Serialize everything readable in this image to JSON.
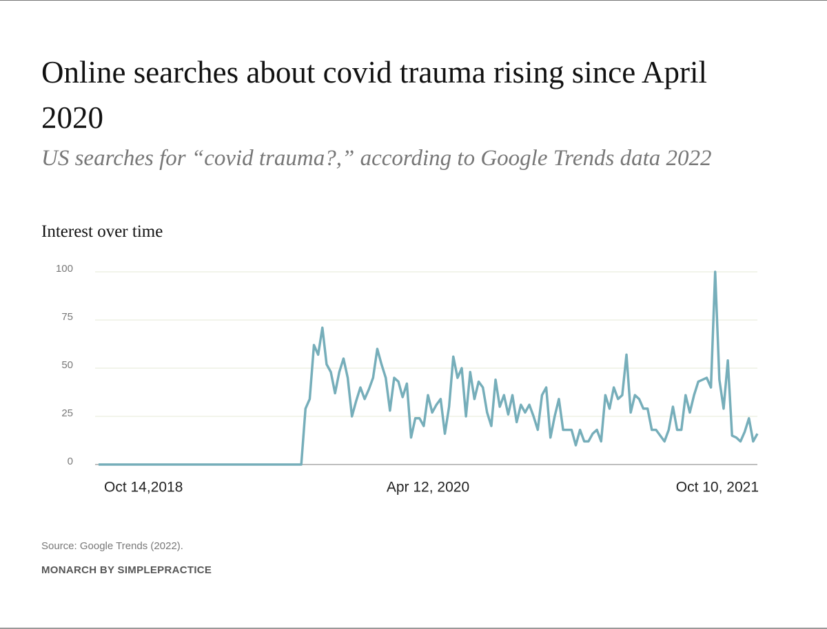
{
  "chart_data": {
    "type": "line",
    "title": "Online searches about covid trauma rising since April 2020",
    "subtitle": "US searches for “covid trauma?,” according to Google Trends data 2022",
    "y_label": "Interest over time",
    "source": "Source: Google Trends (2022).",
    "brand": "MONARCH BY SIMPLEPRACTICE",
    "categories": [
      "Oct 14,2018",
      null,
      null,
      null,
      null,
      null,
      null,
      null,
      null,
      null,
      null,
      null,
      null,
      null,
      null,
      null,
      null,
      null,
      null,
      null,
      null,
      null,
      null,
      null,
      null,
      null,
      null,
      null,
      null,
      null,
      null,
      null,
      null,
      null,
      null,
      null,
      null,
      null,
      null,
      null,
      null,
      null,
      null,
      null,
      null,
      null,
      null,
      null,
      null,
      null,
      null,
      null,
      null,
      null,
      null,
      null,
      null,
      null,
      null,
      null,
      null,
      null,
      null,
      null,
      null,
      null,
      null,
      null,
      null,
      null,
      null,
      null,
      null,
      null,
      null,
      null,
      null,
      null,
      "Apr 12, 2020",
      null,
      null,
      null,
      null,
      null,
      null,
      null,
      null,
      null,
      null,
      null,
      null,
      null,
      null,
      null,
      null,
      null,
      null,
      null,
      null,
      null,
      null,
      null,
      null,
      null,
      null,
      null,
      null,
      null,
      null,
      null,
      null,
      null,
      null,
      null,
      null,
      null,
      null,
      null,
      null,
      null,
      null,
      null,
      null,
      null,
      null,
      null,
      null,
      null,
      null,
      null,
      null,
      null,
      null,
      null,
      null,
      null,
      null,
      null,
      null,
      null,
      null,
      null,
      null,
      null,
      null,
      null,
      null,
      null,
      null,
      null,
      null,
      null,
      null,
      null,
      null,
      null,
      "Oct 10, 2021"
    ],
    "values": [
      0,
      0,
      0,
      0,
      0,
      0,
      0,
      0,
      0,
      0,
      0,
      0,
      0,
      0,
      0,
      0,
      0,
      0,
      0,
      0,
      0,
      0,
      0,
      0,
      0,
      0,
      0,
      0,
      0,
      0,
      0,
      0,
      0,
      0,
      0,
      0,
      0,
      0,
      0,
      0,
      0,
      0,
      0,
      0,
      0,
      0,
      0,
      0,
      0,
      29,
      34,
      62,
      57,
      71,
      52,
      48,
      37,
      48,
      55,
      45,
      25,
      33,
      40,
      34,
      39,
      45,
      60,
      52,
      45,
      28,
      45,
      43,
      35,
      42,
      14,
      24,
      24,
      20,
      36,
      27,
      31,
      34,
      16,
      30,
      56,
      45,
      50,
      25,
      48,
      34,
      43,
      40,
      27,
      20,
      44,
      30,
      36,
      26,
      36,
      22,
      31,
      27,
      31,
      25,
      18,
      36,
      40,
      14,
      25,
      34,
      18,
      18,
      18,
      10,
      18,
      12,
      12,
      16,
      18,
      12,
      36,
      29,
      40,
      34,
      36,
      57,
      27,
      36,
      34,
      29,
      29,
      18,
      18,
      15,
      12,
      18,
      30,
      18,
      18,
      36,
      27,
      36,
      43,
      44,
      45,
      40,
      100,
      44,
      29,
      54,
      15,
      14,
      12,
      17,
      24,
      12,
      16
    ],
    "color": "#76aeba",
    "ylim": [
      0,
      100
    ],
    "yticks": [
      0,
      25,
      50,
      75,
      100
    ],
    "grid": true
  }
}
